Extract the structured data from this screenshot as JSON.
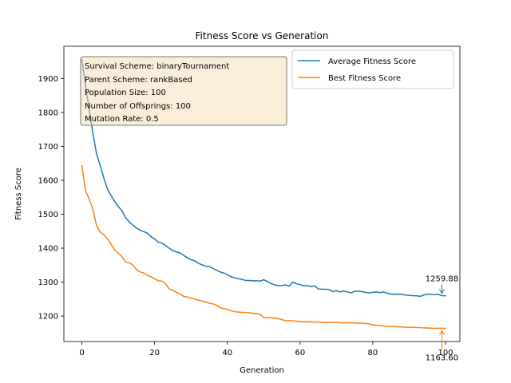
{
  "chart_data": {
    "type": "line",
    "title": "Fitness Score vs Generation",
    "xlabel": "Generation",
    "ylabel": "Fitness Score",
    "xlim": [
      -4.95,
      103.95
    ],
    "ylim": [
      1125,
      1995
    ],
    "xticks": [
      0,
      20,
      40,
      60,
      80,
      100
    ],
    "yticks": [
      1200,
      1300,
      1400,
      1500,
      1600,
      1700,
      1800,
      1900
    ],
    "grid": false,
    "legend_position": "top-right",
    "info_box": [
      "Survival Scheme: binaryTournament",
      "Parent Scheme: rankBased",
      "Population Size: 100",
      "Number of Offsprings: 100",
      "Mutation Rate: 0.5"
    ],
    "series": [
      {
        "name": "Average Fitness Score",
        "color": "#1f77b4",
        "values": [
          1955,
          1880,
          1810,
          1740,
          1680,
          1645,
          1608,
          1575,
          1556,
          1538,
          1523,
          1511,
          1490,
          1478,
          1468,
          1460,
          1453,
          1449,
          1444,
          1434,
          1427,
          1418,
          1415,
          1408,
          1400,
          1393,
          1389,
          1386,
          1379,
          1372,
          1366,
          1363,
          1356,
          1351,
          1347,
          1346,
          1341,
          1335,
          1330,
          1327,
          1322,
          1316,
          1313,
          1310,
          1308,
          1305,
          1305,
          1304,
          1304,
          1303,
          1307,
          1302,
          1296,
          1292,
          1290,
          1290,
          1292,
          1288,
          1300,
          1295,
          1293,
          1289,
          1290,
          1287,
          1289,
          1280,
          1279,
          1279,
          1278,
          1272,
          1275,
          1271,
          1274,
          1271,
          1268,
          1273,
          1273,
          1272,
          1270,
          1268,
          1270,
          1271,
          1269,
          1271,
          1267,
          1265,
          1264,
          1264,
          1264,
          1262,
          1261,
          1260,
          1260,
          1258,
          1262,
          1264,
          1264,
          1263,
          1264,
          1260,
          1259.88
        ]
      },
      {
        "name": "Best Fitness Score",
        "color": "#ff7f0e",
        "values": [
          1643,
          1570,
          1545,
          1515,
          1468,
          1448,
          1440,
          1428,
          1412,
          1395,
          1385,
          1375,
          1360,
          1357,
          1350,
          1337,
          1330,
          1327,
          1320,
          1316,
          1310,
          1304,
          1303,
          1296,
          1280,
          1276,
          1270,
          1265,
          1258,
          1256,
          1253,
          1250,
          1247,
          1244,
          1242,
          1238,
          1236,
          1232,
          1225,
          1222,
          1220,
          1216,
          1213,
          1212,
          1211,
          1210,
          1210,
          1208,
          1207,
          1205,
          1196,
          1195,
          1195,
          1194,
          1192,
          1190,
          1186,
          1186,
          1186,
          1185,
          1183,
          1183,
          1183,
          1183,
          1182,
          1182,
          1182,
          1181,
          1181,
          1181,
          1181,
          1180,
          1180,
          1180,
          1180,
          1180,
          1179,
          1179,
          1178,
          1177,
          1174,
          1173,
          1172,
          1171,
          1170,
          1170,
          1169,
          1168,
          1168,
          1167,
          1167,
          1167,
          1166,
          1166,
          1165,
          1165,
          1164,
          1164,
          1164,
          1164,
          1163.6
        ]
      }
    ],
    "annotations": [
      {
        "text": "1259.88",
        "x": 99,
        "y": 1259.88,
        "series": 0,
        "position": "above"
      },
      {
        "text": "1163.60",
        "x": 99,
        "y": 1163.6,
        "series": 1,
        "position": "below"
      }
    ]
  }
}
